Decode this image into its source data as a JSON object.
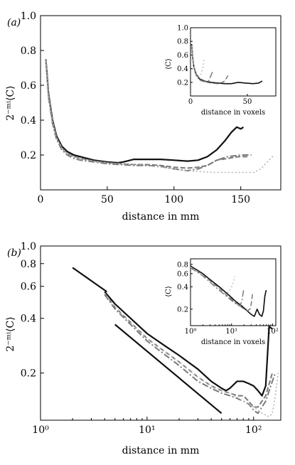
{
  "series_styles": [
    {
      "color": "#111111",
      "width": 2.2,
      "dash": ""
    },
    {
      "color": "#7a7a7a",
      "width": 2.0,
      "dash": "7,3"
    },
    {
      "color": "#7a7a7a",
      "width": 2.0,
      "dash": "9,3,2,3"
    },
    {
      "color": "#b5b5b5",
      "width": 1.6,
      "dash": "2,3"
    }
  ],
  "chart_data": [
    {
      "panel": "(a)",
      "type": "line",
      "xlabel": "distance in mm",
      "ylabel": "2⁻ᵐⁱ⟨C⟩",
      "xlim": [
        0,
        180
      ],
      "ylim": [
        0,
        1.0
      ],
      "xscale": "linear",
      "yscale": "linear",
      "xticks": [
        0,
        50,
        100,
        150
      ],
      "xtick_labels": [
        "0",
        "50",
        "100",
        "150"
      ],
      "yticks": [
        0.2,
        0.4,
        0.6,
        0.8,
        1.0
      ],
      "ytick_labels": [
        "0.2",
        "0.4",
        "0.6",
        "0.8",
        "1.0"
      ],
      "series": [
        {
          "x": [
            4,
            6,
            9,
            12,
            16,
            20,
            25,
            30,
            40,
            50,
            58,
            62,
            70,
            80,
            90,
            100,
            110,
            118,
            125,
            132,
            138,
            143,
            147,
            150,
            152
          ],
          "y": [
            0.75,
            0.55,
            0.4,
            0.31,
            0.25,
            0.22,
            0.2,
            0.19,
            0.17,
            0.16,
            0.155,
            0.16,
            0.175,
            0.175,
            0.175,
            0.17,
            0.165,
            0.17,
            0.19,
            0.23,
            0.28,
            0.33,
            0.36,
            0.35,
            0.36
          ]
        },
        {
          "x": [
            4,
            6,
            9,
            12,
            16,
            20,
            25,
            30,
            40,
            50,
            60,
            70,
            80,
            90,
            100,
            110,
            118,
            125,
            132,
            140,
            148,
            155
          ],
          "y": [
            0.75,
            0.54,
            0.39,
            0.3,
            0.24,
            0.21,
            0.19,
            0.18,
            0.165,
            0.155,
            0.15,
            0.145,
            0.145,
            0.14,
            0.13,
            0.125,
            0.13,
            0.14,
            0.17,
            0.18,
            0.19,
            0.19
          ]
        },
        {
          "x": [
            4,
            6,
            9,
            12,
            16,
            20,
            25,
            30,
            40,
            50,
            60,
            70,
            80,
            90,
            100,
            110,
            118,
            125,
            132,
            140,
            150,
            158
          ],
          "y": [
            0.74,
            0.53,
            0.38,
            0.29,
            0.23,
            0.2,
            0.18,
            0.17,
            0.16,
            0.15,
            0.145,
            0.14,
            0.14,
            0.135,
            0.12,
            0.11,
            0.12,
            0.14,
            0.17,
            0.19,
            0.2,
            0.2
          ]
        },
        {
          "x": [
            4,
            6,
            9,
            12,
            16,
            20,
            25,
            30,
            40,
            50,
            60,
            70,
            80,
            90,
            100,
            110,
            120,
            130,
            140,
            150,
            160,
            165,
            170,
            175
          ],
          "y": [
            0.74,
            0.54,
            0.39,
            0.3,
            0.24,
            0.21,
            0.19,
            0.18,
            0.165,
            0.155,
            0.15,
            0.145,
            0.14,
            0.13,
            0.12,
            0.11,
            0.105,
            0.1,
            0.1,
            0.1,
            0.1,
            0.12,
            0.16,
            0.2
          ]
        }
      ]
    },
    {
      "panel": "(a) inset",
      "type": "line",
      "xlabel": "distance in voxels",
      "ylabel": "⟨C⟩",
      "xlim": [
        0,
        75
      ],
      "ylim": [
        0,
        1.0
      ],
      "xscale": "linear",
      "yscale": "linear",
      "xticks": [
        0,
        50
      ],
      "xtick_labels": [
        "0",
        "50"
      ],
      "yticks": [
        0.2,
        0.4,
        0.6,
        0.8,
        1.0
      ],
      "ytick_labels": [
        "0.2",
        "0.4",
        "0.6",
        "0.8",
        "1.0"
      ],
      "series": [
        {
          "x": [
            1,
            2,
            3,
            5,
            8,
            12,
            18,
            24,
            30,
            36,
            42,
            48,
            55,
            60,
            63
          ],
          "y": [
            0.76,
            0.55,
            0.42,
            0.32,
            0.25,
            0.22,
            0.2,
            0.19,
            0.18,
            0.18,
            0.2,
            0.19,
            0.18,
            0.19,
            0.22
          ]
        },
        {
          "x": [
            1,
            2,
            3,
            5,
            8,
            12,
            18,
            24,
            28,
            30,
            33
          ],
          "y": [
            0.74,
            0.54,
            0.41,
            0.31,
            0.24,
            0.21,
            0.19,
            0.18,
            0.2,
            0.22,
            0.3
          ]
        },
        {
          "x": [
            1,
            2,
            3,
            5,
            8,
            12,
            16,
            18,
            19,
            20
          ],
          "y": [
            0.73,
            0.53,
            0.4,
            0.3,
            0.23,
            0.21,
            0.22,
            0.3,
            0.34,
            0.38
          ]
        },
        {
          "x": [
            1,
            2,
            3,
            5,
            7,
            9,
            11,
            12
          ],
          "y": [
            0.74,
            0.54,
            0.41,
            0.31,
            0.25,
            0.3,
            0.42,
            0.55
          ]
        }
      ]
    },
    {
      "panel": "(b)",
      "type": "line",
      "xlabel": "distance in mm",
      "ylabel": "2⁻ᵐⁱ⟨C⟩",
      "xlim": [
        1,
        180
      ],
      "ylim": [
        0.11,
        1.0
      ],
      "xscale": "log",
      "yscale": "log",
      "xticks": [
        1,
        10,
        100
      ],
      "xtick_labels": [
        "10⁰",
        "10¹",
        "10²"
      ],
      "yticks": [
        0.2,
        0.4,
        0.6,
        0.8,
        1.0
      ],
      "ytick_labels": [
        "0.2",
        "0.4",
        "0.6",
        "0.8",
        "1.0"
      ],
      "series": [
        {
          "x": [
            4,
            5,
            7,
            10,
            15,
            20,
            30,
            40,
            50,
            55,
            60,
            70,
            80,
            90,
            100,
            110,
            120,
            130,
            140,
            150
          ],
          "y": [
            0.56,
            0.48,
            0.4,
            0.33,
            0.28,
            0.25,
            0.21,
            0.18,
            0.165,
            0.16,
            0.165,
            0.18,
            0.18,
            0.175,
            0.17,
            0.16,
            0.15,
            0.17,
            0.36,
            0.35
          ]
        },
        {
          "x": [
            4,
            5,
            7,
            10,
            15,
            20,
            30,
            40,
            50,
            60,
            70,
            80,
            90,
            100,
            110,
            130,
            150
          ],
          "y": [
            0.55,
            0.46,
            0.38,
            0.31,
            0.26,
            0.23,
            0.19,
            0.17,
            0.16,
            0.155,
            0.15,
            0.15,
            0.14,
            0.13,
            0.13,
            0.15,
            0.2
          ]
        },
        {
          "x": [
            4,
            5,
            7,
            10,
            15,
            20,
            30,
            40,
            50,
            60,
            70,
            80,
            90,
            100,
            110,
            130,
            150,
            160
          ],
          "y": [
            0.54,
            0.45,
            0.37,
            0.3,
            0.25,
            0.22,
            0.18,
            0.165,
            0.155,
            0.15,
            0.145,
            0.14,
            0.135,
            0.125,
            0.12,
            0.14,
            0.18,
            0.2
          ]
        },
        {
          "x": [
            4,
            5,
            7,
            10,
            15,
            20,
            30,
            40,
            50,
            60,
            80,
            100,
            120,
            140,
            150,
            160,
            170
          ],
          "y": [
            0.55,
            0.46,
            0.38,
            0.31,
            0.26,
            0.23,
            0.19,
            0.17,
            0.16,
            0.155,
            0.14,
            0.13,
            0.12,
            0.115,
            0.12,
            0.15,
            0.2
          ]
        }
      ],
      "reference_lines": [
        {
          "x": [
            2,
            4.2
          ],
          "y": [
            0.76,
            0.56
          ]
        },
        {
          "x": [
            5,
            50
          ],
          "y": [
            0.37,
            0.12
          ]
        }
      ]
    },
    {
      "panel": "(b) inset",
      "type": "line",
      "xlabel": "distance in voxels",
      "ylabel": "⟨C⟩",
      "xlim": [
        1,
        120
      ],
      "ylim": [
        0.12,
        0.95
      ],
      "xscale": "log",
      "yscale": "log",
      "xticks": [
        1,
        10,
        100
      ],
      "xtick_labels": [
        "10⁰",
        "10¹",
        "10²"
      ],
      "yticks": [
        0.2,
        0.4,
        0.6,
        0.8
      ],
      "ytick_labels": [
        "0.2",
        "0.4",
        "0.6",
        "0.8"
      ],
      "series": [
        {
          "x": [
            1,
            2,
            3,
            5,
            8,
            12,
            18,
            24,
            30,
            36,
            42,
            48,
            55,
            60,
            65,
            70
          ],
          "y": [
            0.76,
            0.6,
            0.5,
            0.4,
            0.32,
            0.26,
            0.22,
            0.19,
            0.17,
            0.16,
            0.2,
            0.17,
            0.16,
            0.19,
            0.3,
            0.36
          ]
        },
        {
          "x": [
            1,
            2,
            3,
            5,
            8,
            12,
            18,
            24,
            28,
            30,
            33
          ],
          "y": [
            0.74,
            0.58,
            0.48,
            0.38,
            0.3,
            0.25,
            0.21,
            0.19,
            0.2,
            0.23,
            0.34
          ]
        },
        {
          "x": [
            1,
            2,
            3,
            5,
            8,
            12,
            16,
            18,
            19,
            20
          ],
          "y": [
            0.72,
            0.56,
            0.46,
            0.36,
            0.29,
            0.24,
            0.22,
            0.26,
            0.32,
            0.38
          ]
        },
        {
          "x": [
            1,
            2,
            3,
            5,
            7,
            9,
            11,
            12
          ],
          "y": [
            0.73,
            0.57,
            0.47,
            0.38,
            0.32,
            0.35,
            0.45,
            0.55
          ]
        }
      ]
    }
  ]
}
